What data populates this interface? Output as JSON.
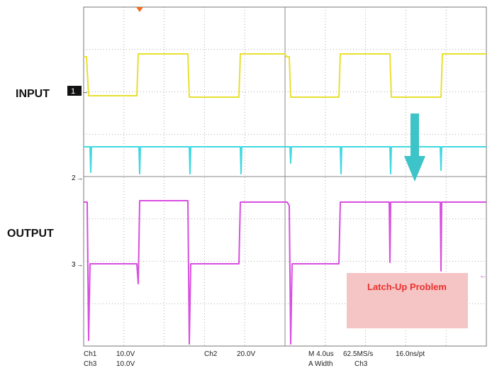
{
  "labels": {
    "input": "INPUT",
    "output": "OUTPUT"
  },
  "channel_markers": [
    "1",
    "2",
    "3"
  ],
  "annotation": "Latch-Up Problem",
  "readout": {
    "ch1": "Ch1",
    "ch1_scale": "10.0V",
    "ch3": "Ch3",
    "ch3_scale": "10.0V",
    "ch2": "Ch2",
    "ch2_scale": "20.0V",
    "timebase": "M 4.0us",
    "sample_rate": "62.5MS/s",
    "resolution": "16.0ns/pt",
    "trigger": "A  Width",
    "trigger_source": "Ch3"
  }
}
